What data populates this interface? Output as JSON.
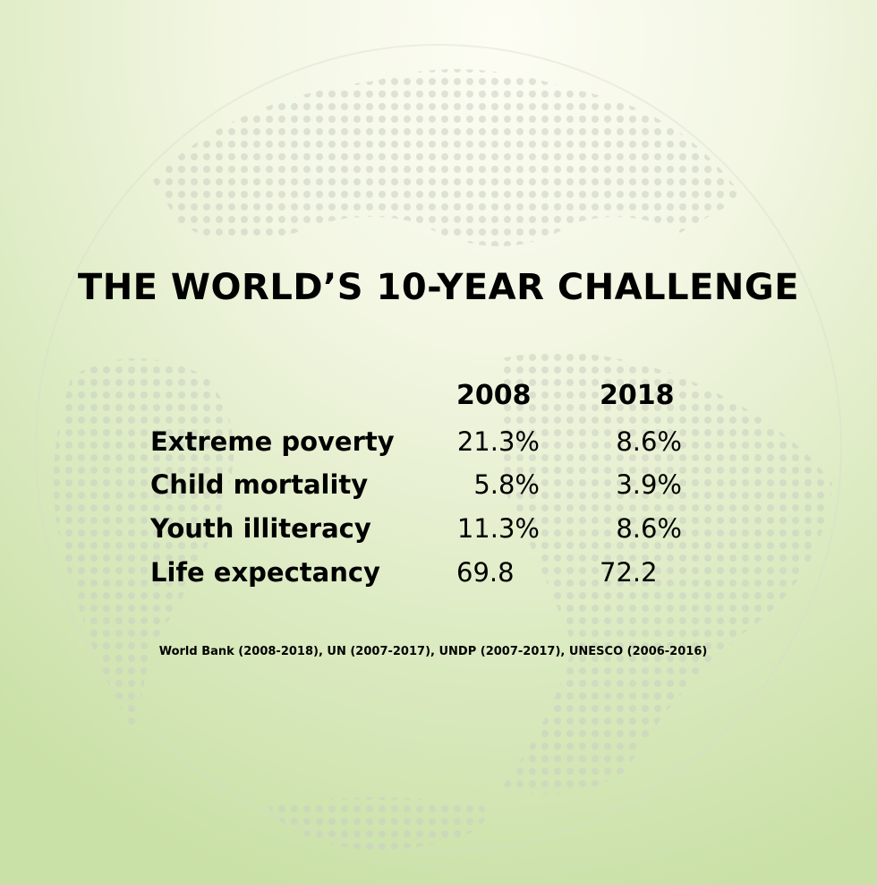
{
  "title": "THE WORLD’S 10-YEAR CHALLENGE",
  "table": {
    "header": [
      "2008",
      "2018"
    ],
    "rows": [
      [
        "Extreme poverty",
        "21.3%",
        "8.6%"
      ],
      [
        "Child mortality",
        "5.8%",
        "3.9%"
      ],
      [
        "Youth illiteracy",
        "11.3%",
        "8.6%"
      ],
      [
        "Life expectancy",
        "69.8",
        "72.2"
      ]
    ]
  },
  "source": "World Bank (2008-2018), UN (2007-2017), UNDP (2007-2017), UNESCO (2006-2016)"
}
